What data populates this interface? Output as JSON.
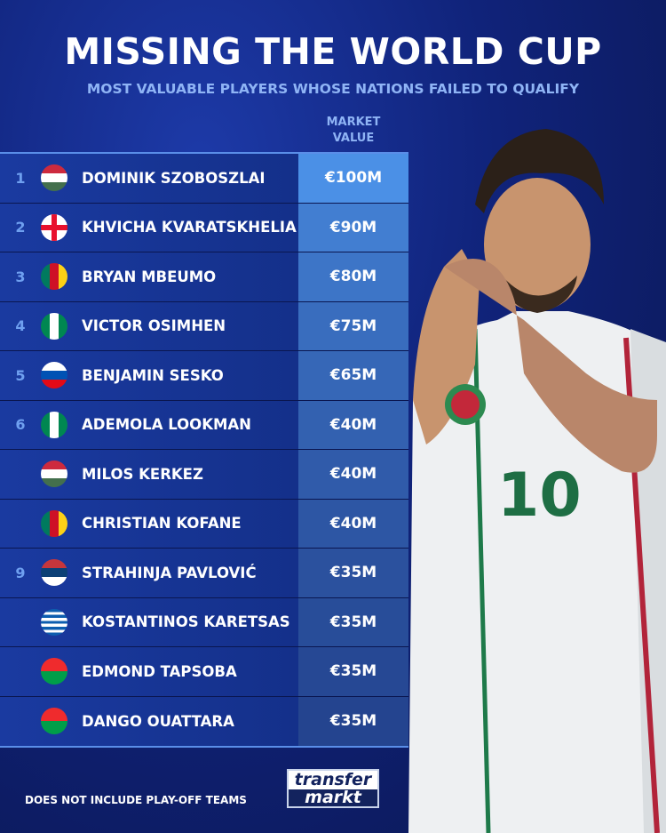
{
  "title": "MISSING THE WORLD CUP",
  "subtitle": "MOST VALUABLE PLAYERS WHOSE NATIONS FAILED TO QUALIFY",
  "column_header": "MARKET VALUE",
  "players": [
    {
      "rank": "1",
      "name": "DOMINIK SZOBOSZLAI",
      "value": "€100M",
      "flag": "hungary"
    },
    {
      "rank": "2",
      "name": "KHVICHA KVARATSKHELIA",
      "value": "€90M",
      "flag": "georgia"
    },
    {
      "rank": "3",
      "name": "BRYAN MBEUMO",
      "value": "€80M",
      "flag": "cameroon"
    },
    {
      "rank": "4",
      "name": "VICTOR OSIMHEN",
      "value": "€75M",
      "flag": "nigeria"
    },
    {
      "rank": "5",
      "name": "BENJAMIN SESKO",
      "value": "€65M",
      "flag": "slovenia"
    },
    {
      "rank": "6",
      "name": "ADEMOLA LOOKMAN",
      "value": "€40M",
      "flag": "nigeria"
    },
    {
      "rank": "",
      "name": "MILOS KERKEZ",
      "value": "€40M",
      "flag": "hungary"
    },
    {
      "rank": "",
      "name": "CHRISTIAN KOFANE",
      "value": "€40M",
      "flag": "cameroon"
    },
    {
      "rank": "9",
      "name": "STRAHINJA PAVLOVIĆ",
      "value": "€35M",
      "flag": "serbia"
    },
    {
      "rank": "",
      "name": "KOSTANTINOS KARETSAS",
      "value": "€35M",
      "flag": "greece"
    },
    {
      "rank": "",
      "name": "EDMOND TAPSOBA",
      "value": "€35M",
      "flag": "burkina-faso"
    },
    {
      "rank": "",
      "name": "DANGO OUATTARA",
      "value": "€35M",
      "flag": "burkina-faso"
    }
  ],
  "footer_note": "DOES NOT INCLUDE PLAY-OFF TEAMS",
  "logo": {
    "line1": "transfer",
    "line2": "markt"
  },
  "shirt_number": "10",
  "colors": {
    "value_top": "#4b90e6",
    "value_bottom": "#24448f",
    "accent": "#8fb4f5"
  }
}
